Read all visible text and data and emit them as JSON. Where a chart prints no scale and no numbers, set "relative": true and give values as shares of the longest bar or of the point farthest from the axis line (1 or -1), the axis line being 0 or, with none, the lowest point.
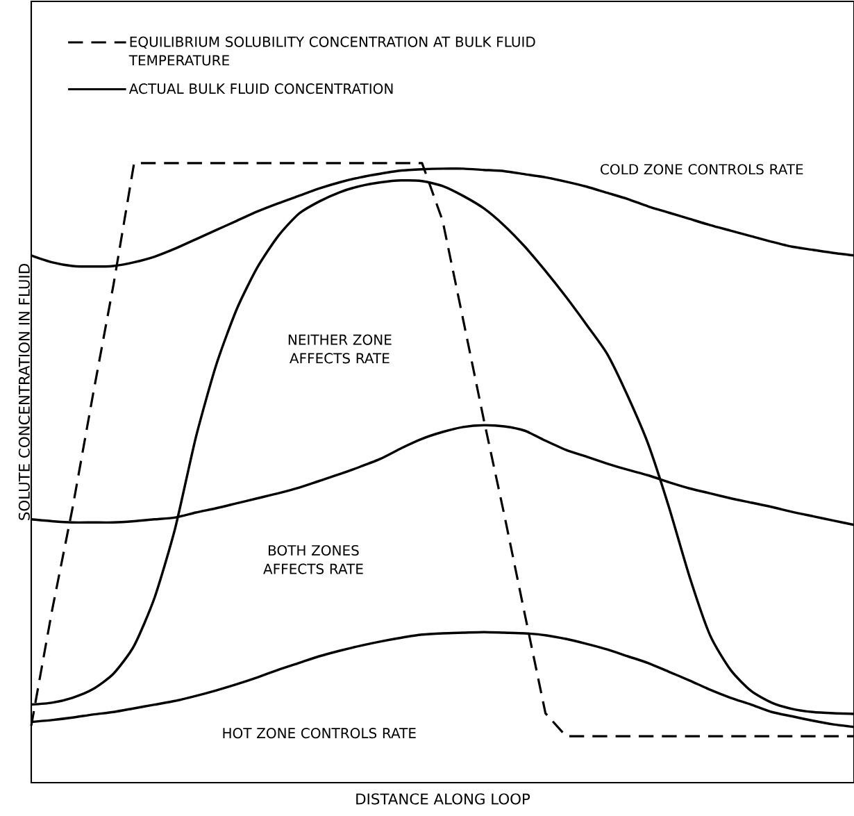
{
  "chart_data": {
    "type": "line",
    "relative": true,
    "xlabel": "DISTANCE ALONG LOOP",
    "ylabel": "SOLUTE CONCENTRATION IN FLUID",
    "categories": [
      null,
      null,
      null,
      null,
      null,
      null,
      null,
      null,
      null,
      null,
      null,
      null,
      null,
      null,
      null,
      null,
      null,
      null,
      null,
      null,
      null,
      null,
      null,
      null,
      null,
      null,
      null,
      null,
      null,
      null,
      null,
      null,
      null,
      null,
      null,
      null,
      null,
      null,
      null,
      null,
      null
    ],
    "series": [
      {
        "name": "EQUILIBRIUM SOLUBILITY CONCENTRATION AT BULK FLUID TEMPERATURE",
        "color": "#000000",
        "line_style": "dashed",
        "values": [
          0.092,
          0.276,
          0.442,
          0.626,
          0.804,
          1.0,
          1.0,
          1.0,
          1.0,
          1.0,
          1.0,
          1.0,
          1.0,
          1.0,
          1.0,
          1.0,
          1.0,
          1.0,
          1.0,
          1.0,
          0.907,
          0.747,
          0.586,
          0.432,
          0.271,
          0.112,
          0.075,
          0.075,
          0.075,
          0.075,
          0.075,
          0.075,
          0.075,
          0.075,
          0.075,
          0.075,
          0.075,
          0.075,
          0.075,
          0.075,
          0.075
        ]
      },
      {
        "name": "ACTUAL BULK FLUID CONCENTRATION",
        "color": "#000000",
        "line_style": "solid",
        "values": [
          0.851,
          0.84,
          0.834,
          0.833,
          0.834,
          0.84,
          0.849,
          0.862,
          0.877,
          0.892,
          0.907,
          0.922,
          0.935,
          0.947,
          0.959,
          0.969,
          0.977,
          0.983,
          0.988,
          0.99,
          0.991,
          0.991,
          0.989,
          0.987,
          0.982,
          0.977,
          0.97,
          0.962,
          0.952,
          0.942,
          0.93,
          0.92,
          0.91,
          0.9,
          0.891,
          0.882,
          0.873,
          0.865,
          0.86,
          0.855,
          0.851
        ]
      },
      {
        "color": "#000000",
        "line_style": "solid",
        "values": [
          0.126,
          0.129,
          0.137,
          0.151,
          0.176,
          0.221,
          0.299,
          0.411,
          0.557,
          0.675,
          0.765,
          0.832,
          0.882,
          0.918,
          0.938,
          0.953,
          0.963,
          0.969,
          0.972,
          0.971,
          0.963,
          0.947,
          0.927,
          0.899,
          0.865,
          0.826,
          0.784,
          0.739,
          0.692,
          0.624,
          0.546,
          0.445,
          0.333,
          0.238,
          0.182,
          0.148,
          0.129,
          0.119,
          0.114,
          0.112,
          0.111
        ]
      },
      {
        "color": "#000000",
        "line_style": "solid",
        "values": [
          0.425,
          0.422,
          0.42,
          0.42,
          0.42,
          0.422,
          0.425,
          0.428,
          0.436,
          0.443,
          0.451,
          0.459,
          0.467,
          0.476,
          0.487,
          0.498,
          0.51,
          0.523,
          0.54,
          0.555,
          0.566,
          0.574,
          0.577,
          0.575,
          0.568,
          0.552,
          0.537,
          0.526,
          0.515,
          0.505,
          0.496,
          0.485,
          0.475,
          0.467,
          0.459,
          0.452,
          0.445,
          0.437,
          0.43,
          0.423,
          0.416
        ]
      },
      {
        "color": "#000000",
        "line_style": "solid",
        "values": [
          0.098,
          0.101,
          0.105,
          0.11,
          0.114,
          0.12,
          0.126,
          0.132,
          0.14,
          0.149,
          0.159,
          0.17,
          0.182,
          0.193,
          0.204,
          0.213,
          0.221,
          0.228,
          0.234,
          0.239,
          0.241,
          0.242,
          0.243,
          0.242,
          0.241,
          0.238,
          0.232,
          0.224,
          0.215,
          0.204,
          0.193,
          0.179,
          0.165,
          0.15,
          0.137,
          0.126,
          0.114,
          0.107,
          0.1,
          0.094,
          0.09
        ]
      }
    ],
    "annotations": [
      "COLD ZONE CONTROLS RATE",
      "NEITHER ZONE AFFECTS RATE",
      "BOTH ZONES AFFECTS RATE",
      "HOT ZONE CONTROLS RATE"
    ],
    "legend": "top left"
  }
}
